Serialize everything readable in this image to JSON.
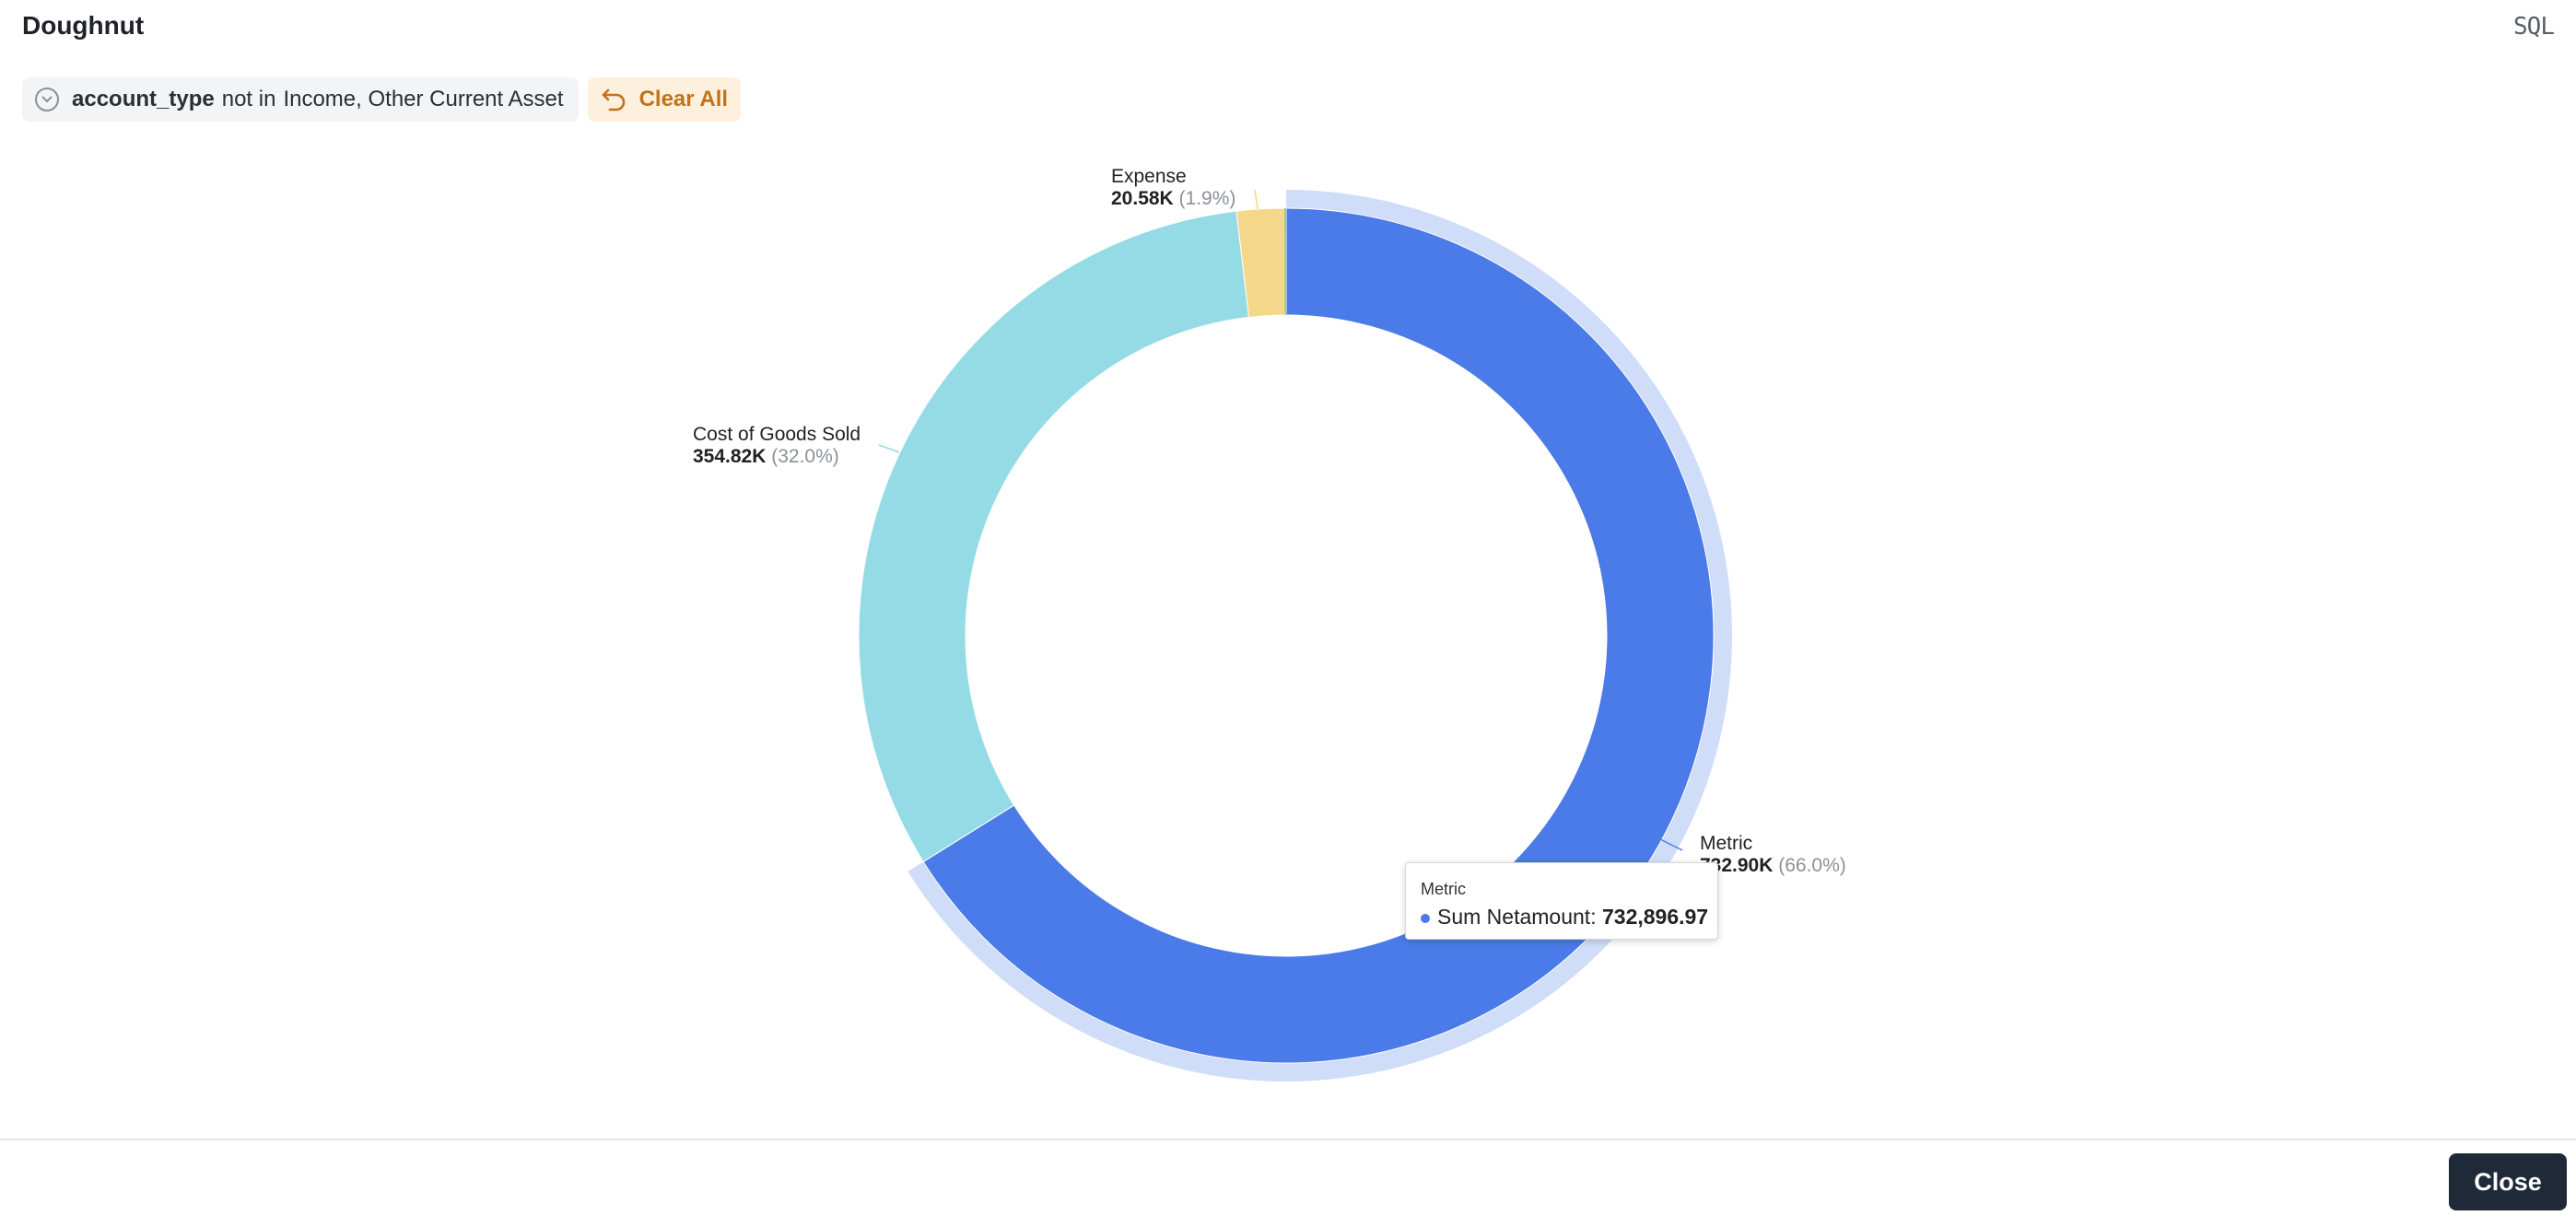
{
  "header": {
    "title": "Doughnut",
    "sql_label": "SQL"
  },
  "filter": {
    "field": "account_type",
    "operator": "not in",
    "values": "Income, Other Current Asset"
  },
  "clear_label": "Clear All",
  "colors": {
    "metric": "#4a7be8",
    "metric_highlight": "#d0ddf8",
    "cogs": "#95dbe5",
    "expense": "#f5d789",
    "other": "#8fce86"
  },
  "chart_data": {
    "type": "pie",
    "hole": true,
    "slices": [
      {
        "label": "Metric",
        "value_label": "732.90K",
        "pct_label": "(66.0%)",
        "value": 732896.97,
        "pct": 66.0
      },
      {
        "label": "Cost of Goods Sold",
        "value_label": "354.82K",
        "pct_label": "(32.0%)",
        "value": 354820,
        "pct": 32.0
      },
      {
        "label": "Expense",
        "value_label": "20.58K",
        "pct_label": "(1.9%)",
        "value": 20580,
        "pct": 1.9
      }
    ]
  },
  "tooltip": {
    "title": "Metric",
    "series_label": "Sum Netamount:",
    "value": "732,896.97"
  },
  "footer": {
    "close_label": "Close"
  }
}
